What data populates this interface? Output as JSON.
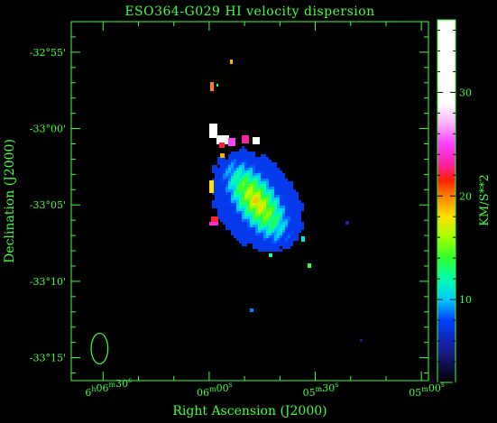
{
  "chart_data": {
    "type": "heatmap",
    "title": "ESO364-G029  HI velocity dispersion",
    "xlabel": "Right Ascension (J2000)",
    "ylabel": "Declination (J2000)",
    "x_ticks": [
      {
        "h": "6",
        "m": "06",
        "s": "30",
        "show_h": true
      },
      {
        "h": "6",
        "m": "06",
        "s": "00",
        "show_h": false
      },
      {
        "h": "6",
        "m": "05",
        "s": "30",
        "show_h": false
      },
      {
        "h": "6",
        "m": "05",
        "s": "00",
        "show_h": false
      }
    ],
    "y_ticks": [
      {
        "label": "-32°55'",
        "dec_arcmin": -1975
      },
      {
        "label": "-33°00'",
        "dec_arcmin": -1980
      },
      {
        "label": "-33°05'",
        "dec_arcmin": -1985
      },
      {
        "label": "-33°10'",
        "dec_arcmin": -1990
      },
      {
        "label": "-33°15'",
        "dec_arcmin": -1995
      }
    ],
    "ra_range_seconds": [
      21999,
      21898
    ],
    "dec_range_arcmin": [
      -1973,
      -1996.5
    ],
    "colorbar": {
      "label": "KM/S**2",
      "range": [
        2,
        37
      ],
      "ticks": [
        10,
        20,
        30
      ],
      "colormap": [
        {
          "v": 2,
          "c": "#000000"
        },
        {
          "v": 5,
          "c": "#1a1a8c"
        },
        {
          "v": 8,
          "c": "#0040ff"
        },
        {
          "v": 10,
          "c": "#00c8ff"
        },
        {
          "v": 12,
          "c": "#00ffb0"
        },
        {
          "v": 14,
          "c": "#30ff30"
        },
        {
          "v": 16,
          "c": "#a0ff00"
        },
        {
          "v": 18,
          "c": "#ffe000"
        },
        {
          "v": 20,
          "c": "#ff8000"
        },
        {
          "v": 21.5,
          "c": "#ff2000"
        },
        {
          "v": 23,
          "c": "#ff20a0"
        },
        {
          "v": 25,
          "c": "#ff40ff"
        },
        {
          "v": 27,
          "c": "#ffb0ff"
        },
        {
          "v": 29,
          "c": "#ffffff"
        },
        {
          "v": 37,
          "c": "#ffffff"
        }
      ]
    },
    "beam": {
      "ra_s": 21991.0,
      "dec_arcmin": -1994.4,
      "major_arcmin": 2.0,
      "minor_arcmin": 1.1
    },
    "grid": false,
    "legend": "colorbar-right"
  }
}
